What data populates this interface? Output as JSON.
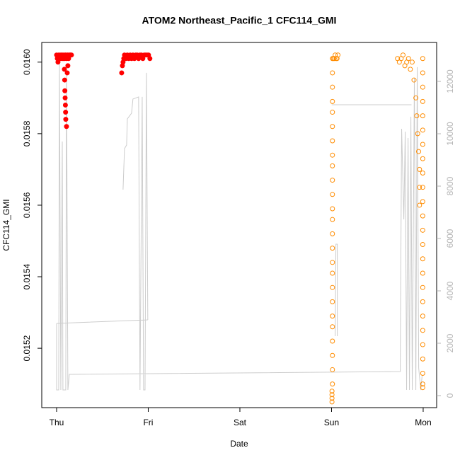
{
  "chart_data": {
    "type": "scatter",
    "title": "ATOM2 Northeast_Pacific_1 CFC114_GMI",
    "xlabel": "Date",
    "ylabel": "CFC114_GMI",
    "xlim": [
      -0.162,
      4.147
    ],
    "xticks": [
      {
        "value": 0,
        "label": "Thu"
      },
      {
        "value": 1,
        "label": "Fri"
      },
      {
        "value": 2,
        "label": "Sat"
      },
      {
        "value": 3,
        "label": "Sun"
      },
      {
        "value": 4,
        "label": "Mon"
      }
    ],
    "ylim": [
      0.015034,
      0.016055
    ],
    "yticks": [
      0.0152,
      0.0154,
      0.0156,
      0.0158,
      {
        "value": 0.016,
        "label": "0.0160"
      }
    ],
    "y2lim": [
      -459,
      13486
    ],
    "y2ticks": [
      0,
      2000,
      4000,
      6000,
      8000,
      10000,
      12000
    ],
    "series": [
      {
        "type": "line",
        "axis": "y2",
        "color": "#cccccc",
        "x": [
          0,
          0.995,
          null,
          0,
          0,
          0.023,
          0.031,
          0.046,
          0.062,
          0.069,
          0.1,
          0.108,
          0.123,
          0.139,
          3.75,
          3.758,
          3.765,
          3.789,
          3.804,
          3.819,
          3.835,
          3.85,
          3.866,
          3.881,
          3.904,
          3.92,
          3.935,
          3.951,
          3.974,
          3.989,
          null,
          0.725,
          0.741,
          0.764,
          0.772,
          0.818,
          0.833,
          0.895,
          0.91,
          0.934,
          0.949,
          0.965,
          0.98,
          0.995,
          null,
          3.002,
          3.873,
          null,
          3.04,
          3.048,
          3.063,
          3.063
        ],
        "values": [
          2757,
          2892,
          null,
          2757,
          216,
          216,
          12677,
          216,
          9704,
          216,
          216,
          12542,
          216,
          811,
          919,
          6190,
          10190,
          6730,
          10082,
          216,
          9839,
          216,
          10650,
          216,
          12136,
          216,
          12542,
          1054,
          216,
          784,
          null,
          7866,
          9433,
          9569,
          10569,
          10785,
          11326,
          11407,
          216,
          11407,
          216,
          216,
          12326,
          2892,
          null,
          11109,
          11109,
          null,
          2271,
          5784,
          5784,
          2271
        ]
      },
      {
        "type": "scatter",
        "color": "#ff0000",
        "marker": "filled",
        "x": [
          0,
          0.008,
          0.015,
          0.023,
          0.031,
          0.039,
          0.046,
          0.054,
          0.062,
          0.069,
          0.077,
          0.085,
          0.093,
          0.1,
          0.108,
          0.116,
          0.124,
          0.131,
          0.139,
          0.147,
          0.154,
          0.162,
          0.085,
          0.088,
          0.09,
          0.093,
          0.096,
          0.098,
          0.1,
          0.108,
          0.116,
          0.123,
          0.71,
          0.718,
          0.725,
          0.733,
          0.741,
          0.756,
          0.772,
          0.787,
          0.803,
          0.818,
          0.833,
          0.849,
          0.864,
          0.88,
          0.895,
          0.91,
          0.926,
          0.941,
          0.957,
          0.972,
          0.988,
          1.003,
          1.018
        ],
        "values": [
          0.01602,
          0.01601,
          0.016,
          0.01602,
          0.01601,
          0.01602,
          0.01601,
          0.01602,
          0.01602,
          0.01601,
          0.01602,
          0.01601,
          0.01602,
          0.01602,
          0.01601,
          0.01602,
          0.01602,
          0.01601,
          0.01602,
          0.01602,
          0.01602,
          0.01602,
          0.01598,
          0.01595,
          0.01592,
          0.0159,
          0.01588,
          0.01586,
          0.01584,
          0.01582,
          0.01597,
          0.01599,
          0.01597,
          0.01599,
          0.016,
          0.01601,
          0.01602,
          0.01601,
          0.01602,
          0.01601,
          0.01602,
          0.01601,
          0.01602,
          0.01601,
          0.01602,
          0.01602,
          0.01601,
          0.01602,
          0.01602,
          0.01601,
          0.01602,
          0.01602,
          0.01602,
          0.01602,
          0.01601
        ]
      },
      {
        "type": "scatter",
        "color": "#ff8c00",
        "marker": "open",
        "x": [
          3.01,
          3.01,
          3.01,
          3.01,
          3.01,
          3.01,
          3.01,
          3.01,
          3.01,
          3.01,
          3.01,
          3.01,
          3.01,
          3.01,
          3.01,
          3.01,
          3.01,
          3.01,
          3.01,
          3.01,
          3.01,
          3.01,
          3.01,
          3.01,
          3.01,
          3.005,
          3.005,
          3.005,
          3.005,
          3.02,
          3.03,
          3.04,
          3.05,
          3.06,
          3.07,
          3.72,
          3.74,
          3.76,
          3.78,
          3.8,
          3.82,
          3.84,
          3.86,
          3.88,
          3.9,
          3.92,
          3.93,
          3.94,
          3.95,
          3.96,
          3.96,
          3.96,
          3.995,
          3.995,
          3.995,
          3.995,
          3.995,
          3.995,
          3.995,
          3.995,
          3.995,
          3.995,
          3.995,
          3.995,
          3.995,
          3.995,
          3.995,
          3.995,
          3.995,
          3.995,
          3.995,
          3.995,
          3.995,
          3.995,
          3.995,
          3.995,
          3.995
        ],
        "values": [
          0.01601,
          0.01597,
          0.01593,
          0.01589,
          0.01586,
          0.01582,
          0.01578,
          0.01574,
          0.01571,
          0.01567,
          0.01563,
          0.01559,
          0.01556,
          0.01552,
          0.01548,
          0.01544,
          0.01541,
          0.01537,
          0.01533,
          0.01529,
          0.01526,
          0.01522,
          0.01518,
          0.01514,
          0.0151,
          0.01508,
          0.01507,
          0.01506,
          0.01505,
          0.01601,
          0.01601,
          0.01602,
          0.01601,
          0.01601,
          0.01602,
          0.01601,
          0.016,
          0.01601,
          0.01602,
          0.01599,
          0.016,
          0.01601,
          0.01598,
          0.016,
          0.01595,
          0.0159,
          0.01585,
          0.0158,
          0.01575,
          0.0157,
          0.01565,
          0.0156,
          0.01601,
          0.01597,
          0.01593,
          0.01589,
          0.01585,
          0.01581,
          0.01577,
          0.01573,
          0.01569,
          0.01565,
          0.01561,
          0.01557,
          0.01553,
          0.01549,
          0.01545,
          0.01541,
          0.01537,
          0.01533,
          0.01529,
          0.01525,
          0.01521,
          0.01517,
          0.01513,
          0.0151,
          0.01509
        ]
      }
    ]
  }
}
